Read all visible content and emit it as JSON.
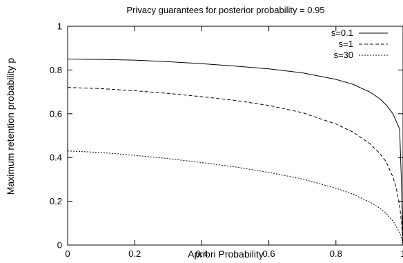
{
  "chart_data": {
    "type": "line",
    "title": "Privacy guarantees for posterior probability = 0.95",
    "xlabel": "Apriori Probability",
    "ylabel": "Maximum retention probability p",
    "xlim": [
      0,
      1
    ],
    "ylim": [
      0,
      1
    ],
    "xticks": [
      0,
      0.2,
      0.4,
      0.6,
      0.8,
      1
    ],
    "yticks": [
      0,
      0.2,
      0.4,
      0.6,
      0.8,
      1
    ],
    "xtick_labels": [
      "0",
      "0.2",
      "0.4",
      "0.6",
      "0.8",
      "1"
    ],
    "ytick_labels": [
      "0",
      "0.2",
      "0.4",
      "0.6",
      "0.8",
      "1"
    ],
    "grid": false,
    "legend_position": "top-right",
    "series": [
      {
        "name": "s=0.1",
        "style": "solid",
        "x": [
          0,
          0.1,
          0.2,
          0.3,
          0.4,
          0.5,
          0.6,
          0.7,
          0.8,
          0.85,
          0.9,
          0.93,
          0.95,
          0.97,
          0.98,
          0.99,
          0.995,
          1
        ],
        "y": [
          0.85,
          0.848,
          0.845,
          0.838,
          0.829,
          0.818,
          0.805,
          0.787,
          0.757,
          0.735,
          0.7,
          0.67,
          0.64,
          0.6,
          0.565,
          0.53,
          0.3,
          0
        ]
      },
      {
        "name": "s=1",
        "style": "dashed",
        "x": [
          0,
          0.1,
          0.2,
          0.3,
          0.4,
          0.5,
          0.6,
          0.7,
          0.8,
          0.85,
          0.9,
          0.93,
          0.95,
          0.97,
          0.98,
          0.99,
          0.995,
          1
        ],
        "y": [
          0.72,
          0.715,
          0.705,
          0.693,
          0.678,
          0.661,
          0.638,
          0.605,
          0.553,
          0.517,
          0.465,
          0.42,
          0.38,
          0.31,
          0.26,
          0.18,
          0.11,
          0
        ]
      },
      {
        "name": "s=30",
        "style": "dotted",
        "x": [
          0,
          0.1,
          0.2,
          0.3,
          0.4,
          0.5,
          0.6,
          0.7,
          0.8,
          0.85,
          0.9,
          0.93,
          0.95,
          0.97,
          0.98,
          0.99,
          0.995,
          1
        ],
        "y": [
          0.43,
          0.423,
          0.41,
          0.395,
          0.377,
          0.357,
          0.332,
          0.302,
          0.26,
          0.233,
          0.197,
          0.17,
          0.145,
          0.11,
          0.085,
          0.055,
          0.035,
          0
        ]
      }
    ]
  }
}
